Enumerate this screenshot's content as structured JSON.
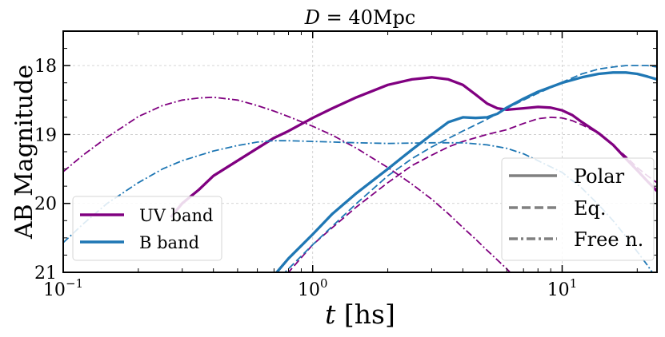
{
  "chart_data": {
    "type": "line",
    "title": "D = 40Mpc",
    "title_var": "D",
    "title_rest": " = 40Mpc",
    "xlabel_var": "t",
    "xlabel_unit": "[hs]",
    "ylabel": "AB Magnitude",
    "xscale": "log",
    "xlim": [
      0.1,
      24
    ],
    "ylim": [
      21,
      17.5
    ],
    "y_inverted": true,
    "grid": true,
    "x_ticks": [
      {
        "value": 0.1,
        "base": "10",
        "exp": "−1"
      },
      {
        "value": 1,
        "base": "10",
        "exp": "0"
      },
      {
        "value": 10,
        "base": "10",
        "exp": "1"
      }
    ],
    "y_ticks": [
      {
        "value": 18,
        "label": "18"
      },
      {
        "value": 19,
        "label": "19"
      },
      {
        "value": 20,
        "label": "20"
      },
      {
        "value": 21,
        "label": "21"
      }
    ],
    "colors": {
      "uv": "#800080",
      "b": "#1f77b4",
      "legend_gray": "#808080"
    },
    "legend_bands": {
      "placement": "lower-left",
      "entries": [
        {
          "label": "UV band",
          "color": "#800080"
        },
        {
          "label": "B band",
          "color": "#1f77b4"
        }
      ]
    },
    "legend_styles": {
      "placement": "lower-right",
      "entries": [
        {
          "label": "Polar",
          "dash": "solid"
        },
        {
          "label": "Eq.",
          "dash": "dashed"
        },
        {
          "label": "Free n.",
          "dash": "dashdot"
        }
      ]
    },
    "series": [
      {
        "name": "UV band Polar",
        "band": "uv",
        "style": "solid",
        "x": [
          0.27,
          0.3,
          0.35,
          0.4,
          0.5,
          0.6,
          0.7,
          0.8,
          1.0,
          1.2,
          1.5,
          2.0,
          2.5,
          3.0,
          3.5,
          4.0,
          4.5,
          5.0,
          5.5,
          6.0,
          7.0,
          8.0,
          9.0,
          10.0,
          11.0,
          12.0,
          14.0,
          16.0,
          18.0,
          20.0,
          22.0,
          24.0
        ],
        "y": [
          20.2,
          20.0,
          19.8,
          19.6,
          19.38,
          19.2,
          19.05,
          18.95,
          18.76,
          18.62,
          18.46,
          18.28,
          18.2,
          18.17,
          18.2,
          18.28,
          18.42,
          18.55,
          18.62,
          18.64,
          18.62,
          18.6,
          18.61,
          18.65,
          18.72,
          18.82,
          18.98,
          19.15,
          19.35,
          19.52,
          19.68,
          19.82
        ]
      },
      {
        "name": "UV band Eq.",
        "band": "uv",
        "style": "dashed",
        "x": [
          0.7,
          0.8,
          1.0,
          1.2,
          1.5,
          2.0,
          2.5,
          3.0,
          3.5,
          4.0,
          5.0,
          6.0,
          7.0,
          8.0,
          9.0,
          10.0,
          11.0,
          12.0,
          14.0,
          16.0,
          18.0,
          20.0,
          22.0,
          24.0
        ],
        "y": [
          21.25,
          21.0,
          20.6,
          20.35,
          20.05,
          19.7,
          19.45,
          19.3,
          19.18,
          19.1,
          19.0,
          18.93,
          18.84,
          18.77,
          18.75,
          18.76,
          18.8,
          18.86,
          18.98,
          19.15,
          19.32,
          19.48,
          19.6,
          19.7
        ]
      },
      {
        "name": "UV band Free n.",
        "band": "uv",
        "style": "dashdot",
        "x": [
          0.1,
          0.12,
          0.15,
          0.2,
          0.25,
          0.3,
          0.35,
          0.4,
          0.5,
          0.6,
          0.7,
          0.8,
          1.0,
          1.2,
          1.5,
          2.0,
          2.5,
          3.0,
          3.5,
          4.0,
          4.5,
          5.0,
          6.0,
          7.0
        ],
        "y": [
          19.54,
          19.3,
          19.04,
          18.74,
          18.58,
          18.5,
          18.47,
          18.46,
          18.5,
          18.58,
          18.66,
          18.74,
          18.88,
          19.01,
          19.2,
          19.48,
          19.72,
          19.94,
          20.15,
          20.35,
          20.52,
          20.68,
          20.95,
          21.2
        ]
      },
      {
        "name": "B band Polar",
        "band": "b",
        "style": "solid",
        "x": [
          0.68,
          0.8,
          1.0,
          1.2,
          1.5,
          2.0,
          2.5,
          3.0,
          3.5,
          4.0,
          4.5,
          5.0,
          5.5,
          6.0,
          7.0,
          8.0,
          10.0,
          12.0,
          14.0,
          16.0,
          18.0,
          20.0,
          22.0,
          24.0
        ],
        "y": [
          21.1,
          20.8,
          20.45,
          20.15,
          19.85,
          19.5,
          19.22,
          19.0,
          18.82,
          18.75,
          18.76,
          18.75,
          18.7,
          18.61,
          18.48,
          18.38,
          18.25,
          18.17,
          18.12,
          18.1,
          18.1,
          18.12,
          18.16,
          18.2
        ]
      },
      {
        "name": "B band Eq.",
        "band": "b",
        "style": "dashed",
        "x": [
          0.75,
          1.0,
          1.5,
          2.0,
          2.5,
          3.0,
          4.0,
          5.0,
          6.0,
          7.0,
          8.0,
          9.0,
          10.0,
          12.0,
          14.0,
          16.0,
          18.0,
          20.0,
          22.0,
          24.0
        ],
        "y": [
          21.05,
          20.6,
          20.0,
          19.6,
          19.35,
          19.18,
          18.95,
          18.78,
          18.62,
          18.5,
          18.4,
          18.32,
          18.24,
          18.12,
          18.05,
          18.02,
          18.0,
          18.0,
          18.0,
          18.02
        ]
      },
      {
        "name": "B band Free n.",
        "band": "b",
        "style": "dashdot",
        "x": [
          0.1,
          0.12,
          0.15,
          0.2,
          0.25,
          0.3,
          0.4,
          0.5,
          0.6,
          0.7,
          0.8,
          1.0,
          1.5,
          2.0,
          3.0,
          4.0,
          5.0,
          6.0,
          7.0,
          8.0,
          10.0,
          12.0,
          14.0,
          16.0,
          18.0,
          20.0,
          22.0,
          24.0
        ],
        "y": [
          20.57,
          20.3,
          20.0,
          19.7,
          19.5,
          19.38,
          19.24,
          19.16,
          19.11,
          19.09,
          19.09,
          19.1,
          19.12,
          19.13,
          19.12,
          19.12,
          19.15,
          19.2,
          19.28,
          19.38,
          19.55,
          19.78,
          20.02,
          20.25,
          20.48,
          20.7,
          20.9,
          21.1
        ]
      }
    ]
  }
}
